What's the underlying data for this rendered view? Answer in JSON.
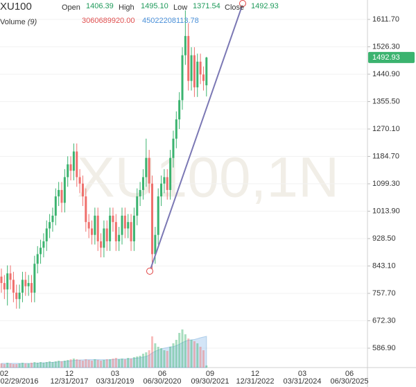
{
  "chart_data": {
    "type": "candlestick",
    "symbol": "XU100",
    "watermark": "XU100,1N",
    "open_label": "Open",
    "high_label": "High",
    "low_label": "Low",
    "close_label": "Close",
    "volume_title": "Volume",
    "volume_period": "(9)",
    "up_color": "#3bb36f",
    "down_color": "#ef6f6c",
    "ylim": [
      526.4,
      1672.2
    ],
    "yticks": [
      {
        "value": 1611.7,
        "label": "1611.70"
      },
      {
        "value": 1526.3,
        "label": "1526.30"
      },
      {
        "value": 1440.9,
        "label": "1440.90"
      },
      {
        "value": 1355.5,
        "label": "1355.50"
      },
      {
        "value": 1270.1,
        "label": "1270.10"
      },
      {
        "value": 1184.7,
        "label": "1184.70"
      },
      {
        "value": 1099.3,
        "label": "1099.30"
      },
      {
        "value": 1013.9,
        "label": "1013.90"
      },
      {
        "value": 928.5,
        "label": "928.50"
      },
      {
        "value": 843.1,
        "label": "843.10"
      },
      {
        "value": 757.7,
        "label": "757.70"
      },
      {
        "value": 672.3,
        "label": "672.30"
      },
      {
        "value": 586.9,
        "label": "586.90"
      }
    ],
    "x_axis_labels": [
      {
        "short": "02",
        "full": "02/29/2016"
      },
      {
        "short": "12",
        "full": "12/31/2017"
      },
      {
        "short": "03",
        "full": "03/31/2019"
      },
      {
        "short": "06",
        "full": "06/30/2020"
      },
      {
        "short": "09",
        "full": "09/30/2021"
      },
      {
        "short": "12",
        "full": "12/31/2022"
      },
      {
        "short": "03",
        "full": "03/31/2024"
      },
      {
        "short": "06",
        "full": "06/30/2025"
      }
    ],
    "open": [
      810,
      790,
      770,
      820,
      800,
      760,
      740,
      760,
      800,
      780,
      790,
      760,
      850,
      880,
      900,
      920,
      960,
      980,
      1000,
      1060,
      1080,
      1040,
      1120,
      1160,
      1140,
      1200,
      1120,
      1100,
      1060,
      980,
      960,
      940,
      1000,
      920,
      900,
      960,
      920,
      1000,
      980,
      920,
      940,
      1000,
      960,
      980,
      920,
      1000,
      1060,
      1080,
      1120,
      1180,
      1100,
      880,
      940,
      1060,
      1100,
      1120,
      1080,
      1180,
      1240,
      1300,
      1360,
      1500,
      1560,
      1420,
      1500,
      1400,
      1480,
      1440,
      1406.39
    ],
    "high": [
      835,
      815,
      845,
      845,
      825,
      785,
      785,
      825,
      825,
      815,
      815,
      875,
      905,
      925,
      945,
      985,
      1005,
      1025,
      1085,
      1105,
      1105,
      1145,
      1185,
      1185,
      1225,
      1225,
      1145,
      1125,
      1085,
      1005,
      985,
      1025,
      1025,
      945,
      985,
      985,
      1025,
      1025,
      1005,
      965,
      1025,
      1025,
      1005,
      1005,
      1025,
      1085,
      1105,
      1145,
      1240,
      1205,
      1125,
      965,
      1085,
      1125,
      1145,
      1145,
      1205,
      1265,
      1325,
      1385,
      1525,
      1640,
      1600,
      1525,
      1525,
      1505,
      1505,
      1465,
      1495.1
    ],
    "high_value_labels": [
      null,
      null,
      null,
      null,
      null,
      null,
      null,
      null,
      null,
      null,
      null,
      null,
      null,
      null,
      null,
      null,
      null,
      null,
      null,
      null,
      null,
      null,
      null,
      null,
      null,
      null,
      null,
      null,
      null,
      null,
      null,
      null,
      null,
      null,
      null,
      null,
      null,
      null,
      null,
      null,
      null,
      null,
      null,
      null,
      null,
      null,
      null,
      null,
      null,
      null,
      null,
      null,
      null,
      null,
      null,
      null,
      null,
      null,
      null,
      null,
      null,
      null,
      null,
      null,
      null,
      null,
      null,
      null,
      "1495.10"
    ],
    "low": [
      760,
      740,
      720,
      770,
      730,
      710,
      710,
      730,
      750,
      750,
      730,
      730,
      820,
      850,
      870,
      890,
      930,
      950,
      970,
      1030,
      1010,
      1010,
      1090,
      1110,
      1110,
      1090,
      1070,
      1030,
      950,
      930,
      910,
      910,
      890,
      870,
      870,
      890,
      890,
      950,
      890,
      890,
      910,
      930,
      930,
      890,
      890,
      970,
      1030,
      1050,
      1090,
      1070,
      830,
      850,
      910,
      1030,
      1070,
      1050,
      1050,
      1150,
      1210,
      1270,
      1330,
      1470,
      1390,
      1390,
      1370,
      1370,
      1410,
      1390,
      1371.54
    ],
    "close": [
      790,
      770,
      820,
      800,
      760,
      740,
      760,
      800,
      780,
      790,
      760,
      850,
      880,
      900,
      920,
      960,
      980,
      1000,
      1060,
      1080,
      1040,
      1120,
      1160,
      1140,
      1200,
      1120,
      1100,
      1060,
      980,
      960,
      940,
      1000,
      920,
      900,
      960,
      920,
      1000,
      980,
      920,
      940,
      1000,
      960,
      980,
      920,
      1000,
      1060,
      1080,
      1120,
      1180,
      1100,
      880,
      940,
      1060,
      1100,
      1120,
      1080,
      1180,
      1240,
      1300,
      1360,
      1500,
      1560,
      1420,
      1500,
      1400,
      1480,
      1440,
      1420,
      1492.93
    ],
    "volume_ylim": [
      0,
      60000000000
    ],
    "volume": [
      6000000000.0,
      5000000000.0,
      7000000000.0,
      6000000000.0,
      5000000000.0,
      5000000000.0,
      6000000000.0,
      7000000000.0,
      6000000000.0,
      6000000000.0,
      7000000000.0,
      8000000000.0,
      7000000000.0,
      8000000000.0,
      7000000000.0,
      8000000000.0,
      9000000000.0,
      8000000000.0,
      9000000000.0,
      10000000000.0,
      9000000000.0,
      10000000000.0,
      11000000000.0,
      12000000000.0,
      13000000000.0,
      12000000000.0,
      11000000000.0,
      10000000000.0,
      12000000000.0,
      11000000000.0,
      10000000000.0,
      12000000000.0,
      11000000000.0,
      10000000000.0,
      11000000000.0,
      12000000000.0,
      12000000000.0,
      13000000000.0,
      14000000000.0,
      12000000000.0,
      13000000000.0,
      12000000000.0,
      14000000000.0,
      13000000000.0,
      15000000000.0,
      16000000000.0,
      17000000000.0,
      20000000000.0,
      22000000000.0,
      25000000000.0,
      45000000000.0,
      35000000000.0,
      30000000000.0,
      28000000000.0,
      25000000000.0,
      24000000000.0,
      30000000000.0,
      35000000000.0,
      40000000000.0,
      50000000000.0,
      55000000000.0,
      48000000000.0,
      42000000000.0,
      40000000000.0,
      38000000000.0,
      35000000000.0,
      30000000000.0,
      25000000000.0,
      3060689920
    ],
    "volume_value_labels": [
      null,
      null,
      null,
      null,
      null,
      null,
      null,
      null,
      null,
      null,
      null,
      null,
      null,
      null,
      null,
      null,
      null,
      null,
      null,
      null,
      null,
      null,
      null,
      null,
      null,
      null,
      null,
      null,
      null,
      null,
      null,
      null,
      null,
      null,
      null,
      null,
      null,
      null,
      null,
      null,
      null,
      null,
      null,
      null,
      null,
      null,
      null,
      null,
      null,
      null,
      null,
      null,
      null,
      null,
      null,
      null,
      null,
      null,
      null,
      null,
      null,
      null,
      null,
      null,
      null,
      null,
      null,
      null,
      "3060689920.00"
    ],
    "volume_ma": [
      6000000000.0,
      6000000000.0,
      6000000000.0,
      6000000000.0,
      6000000000.0,
      6000000000.0,
      6000000000.0,
      6000000000.0,
      6000000000.0,
      6000000000.0,
      6000000000.0,
      6000000000.0,
      6500000000.0,
      6700000000.0,
      6900000000.0,
      7100000000.0,
      7400000000.0,
      7600000000.0,
      7900000000.0,
      8300000000.0,
      8600000000.0,
      8900000000.0,
      9300000000.0,
      9800000000.0,
      10300000000.0,
      10700000000.0,
      11000000000.0,
      11100000000.0,
      11300000000.0,
      11400000000.0,
      11400000000.0,
      11500000000.0,
      11400000000.0,
      11200000000.0,
      11200000000.0,
      11200000000.0,
      11300000000.0,
      11600000000.0,
      12000000000.0,
      12100000000.0,
      12200000000.0,
      12200000000.0,
      12500000000.0,
      12900000000.0,
      13200000000.0,
      13700000000.0,
      14200000000.0,
      15100000000.0,
      16200000000.0,
      17800000000.0,
      21200000000.0,
      23600000000.0,
      25300000000.0,
      26800000000.0,
      28000000000.0,
      28800000000.0,
      29900000000.0,
      30100000000.0,
      31700000000.0,
      33600000000.0,
      36000000000.0,
      38000000000.0,
      39500000000.0,
      40000000000.0,
      40500000000.0,
      41600000000.0,
      43000000000.0,
      44000000000.0,
      45022208113.78
    ]
  }
}
